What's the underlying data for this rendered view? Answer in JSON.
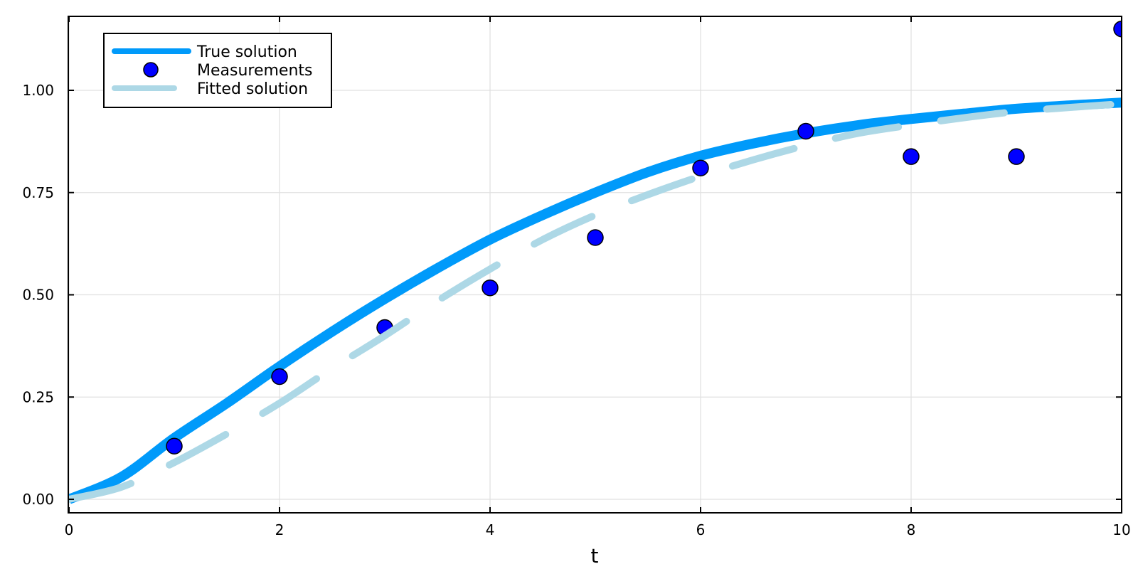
{
  "chart_data": {
    "type": "line",
    "title": "",
    "xlabel": "t",
    "ylabel": "",
    "xlim": [
      0,
      10
    ],
    "ylim": [
      -0.035,
      1.175
    ],
    "grid": true,
    "legend_position": "top-left",
    "x_ticks": [
      0,
      2,
      4,
      6,
      8,
      10
    ],
    "x_tick_labels": [
      "0",
      "2",
      "4",
      "6",
      "8",
      "10"
    ],
    "y_ticks": [
      0,
      0.25,
      0.5,
      0.75,
      1.0
    ],
    "y_tick_labels": [
      "0.00",
      "0.25",
      "0.50",
      "0.75",
      "1.00"
    ],
    "series": [
      {
        "name": "True solution",
        "kind": "line",
        "style": "solid",
        "color": "#009AFA",
        "x": [
          0,
          0.5,
          1,
          1.5,
          2,
          2.5,
          3,
          3.5,
          4,
          4.5,
          5,
          5.5,
          6,
          6.5,
          7,
          7.5,
          8,
          8.5,
          9,
          9.5,
          10
        ],
        "values": [
          0.0,
          0.055,
          0.15,
          0.235,
          0.325,
          0.41,
          0.49,
          0.565,
          0.635,
          0.695,
          0.75,
          0.8,
          0.84,
          0.87,
          0.895,
          0.915,
          0.93,
          0.943,
          0.955,
          0.963,
          0.97
        ]
      },
      {
        "name": "Measurements",
        "kind": "scatter",
        "color": "#0000FF",
        "x": [
          1,
          2,
          3,
          4,
          5,
          6,
          7,
          8,
          9,
          10
        ],
        "values": [
          0.13,
          0.3,
          0.42,
          0.517,
          0.64,
          0.81,
          0.9,
          0.838,
          0.838,
          1.15
        ]
      },
      {
        "name": "Fitted solution",
        "kind": "line",
        "style": "dashed",
        "color": "#ADD8E6",
        "x": [
          0,
          0.5,
          1,
          1.5,
          2,
          2.5,
          3,
          3.5,
          4,
          4.5,
          5,
          5.5,
          6,
          6.5,
          7,
          7.5,
          8,
          8.5,
          9,
          9.5,
          10
        ],
        "values": [
          0.0,
          0.03,
          0.09,
          0.16,
          0.235,
          0.32,
          0.4,
          0.485,
          0.563,
          0.635,
          0.695,
          0.745,
          0.79,
          0.83,
          0.865,
          0.895,
          0.915,
          0.933,
          0.948,
          0.958,
          0.967
        ]
      }
    ]
  },
  "legend": {
    "items": [
      {
        "label": "True solution",
        "kind": "line",
        "color": "#009AFA"
      },
      {
        "label": "Measurements",
        "kind": "marker",
        "color": "#0000FF"
      },
      {
        "label": "Fitted solution",
        "kind": "line",
        "color": "#ADD8E6"
      }
    ]
  }
}
